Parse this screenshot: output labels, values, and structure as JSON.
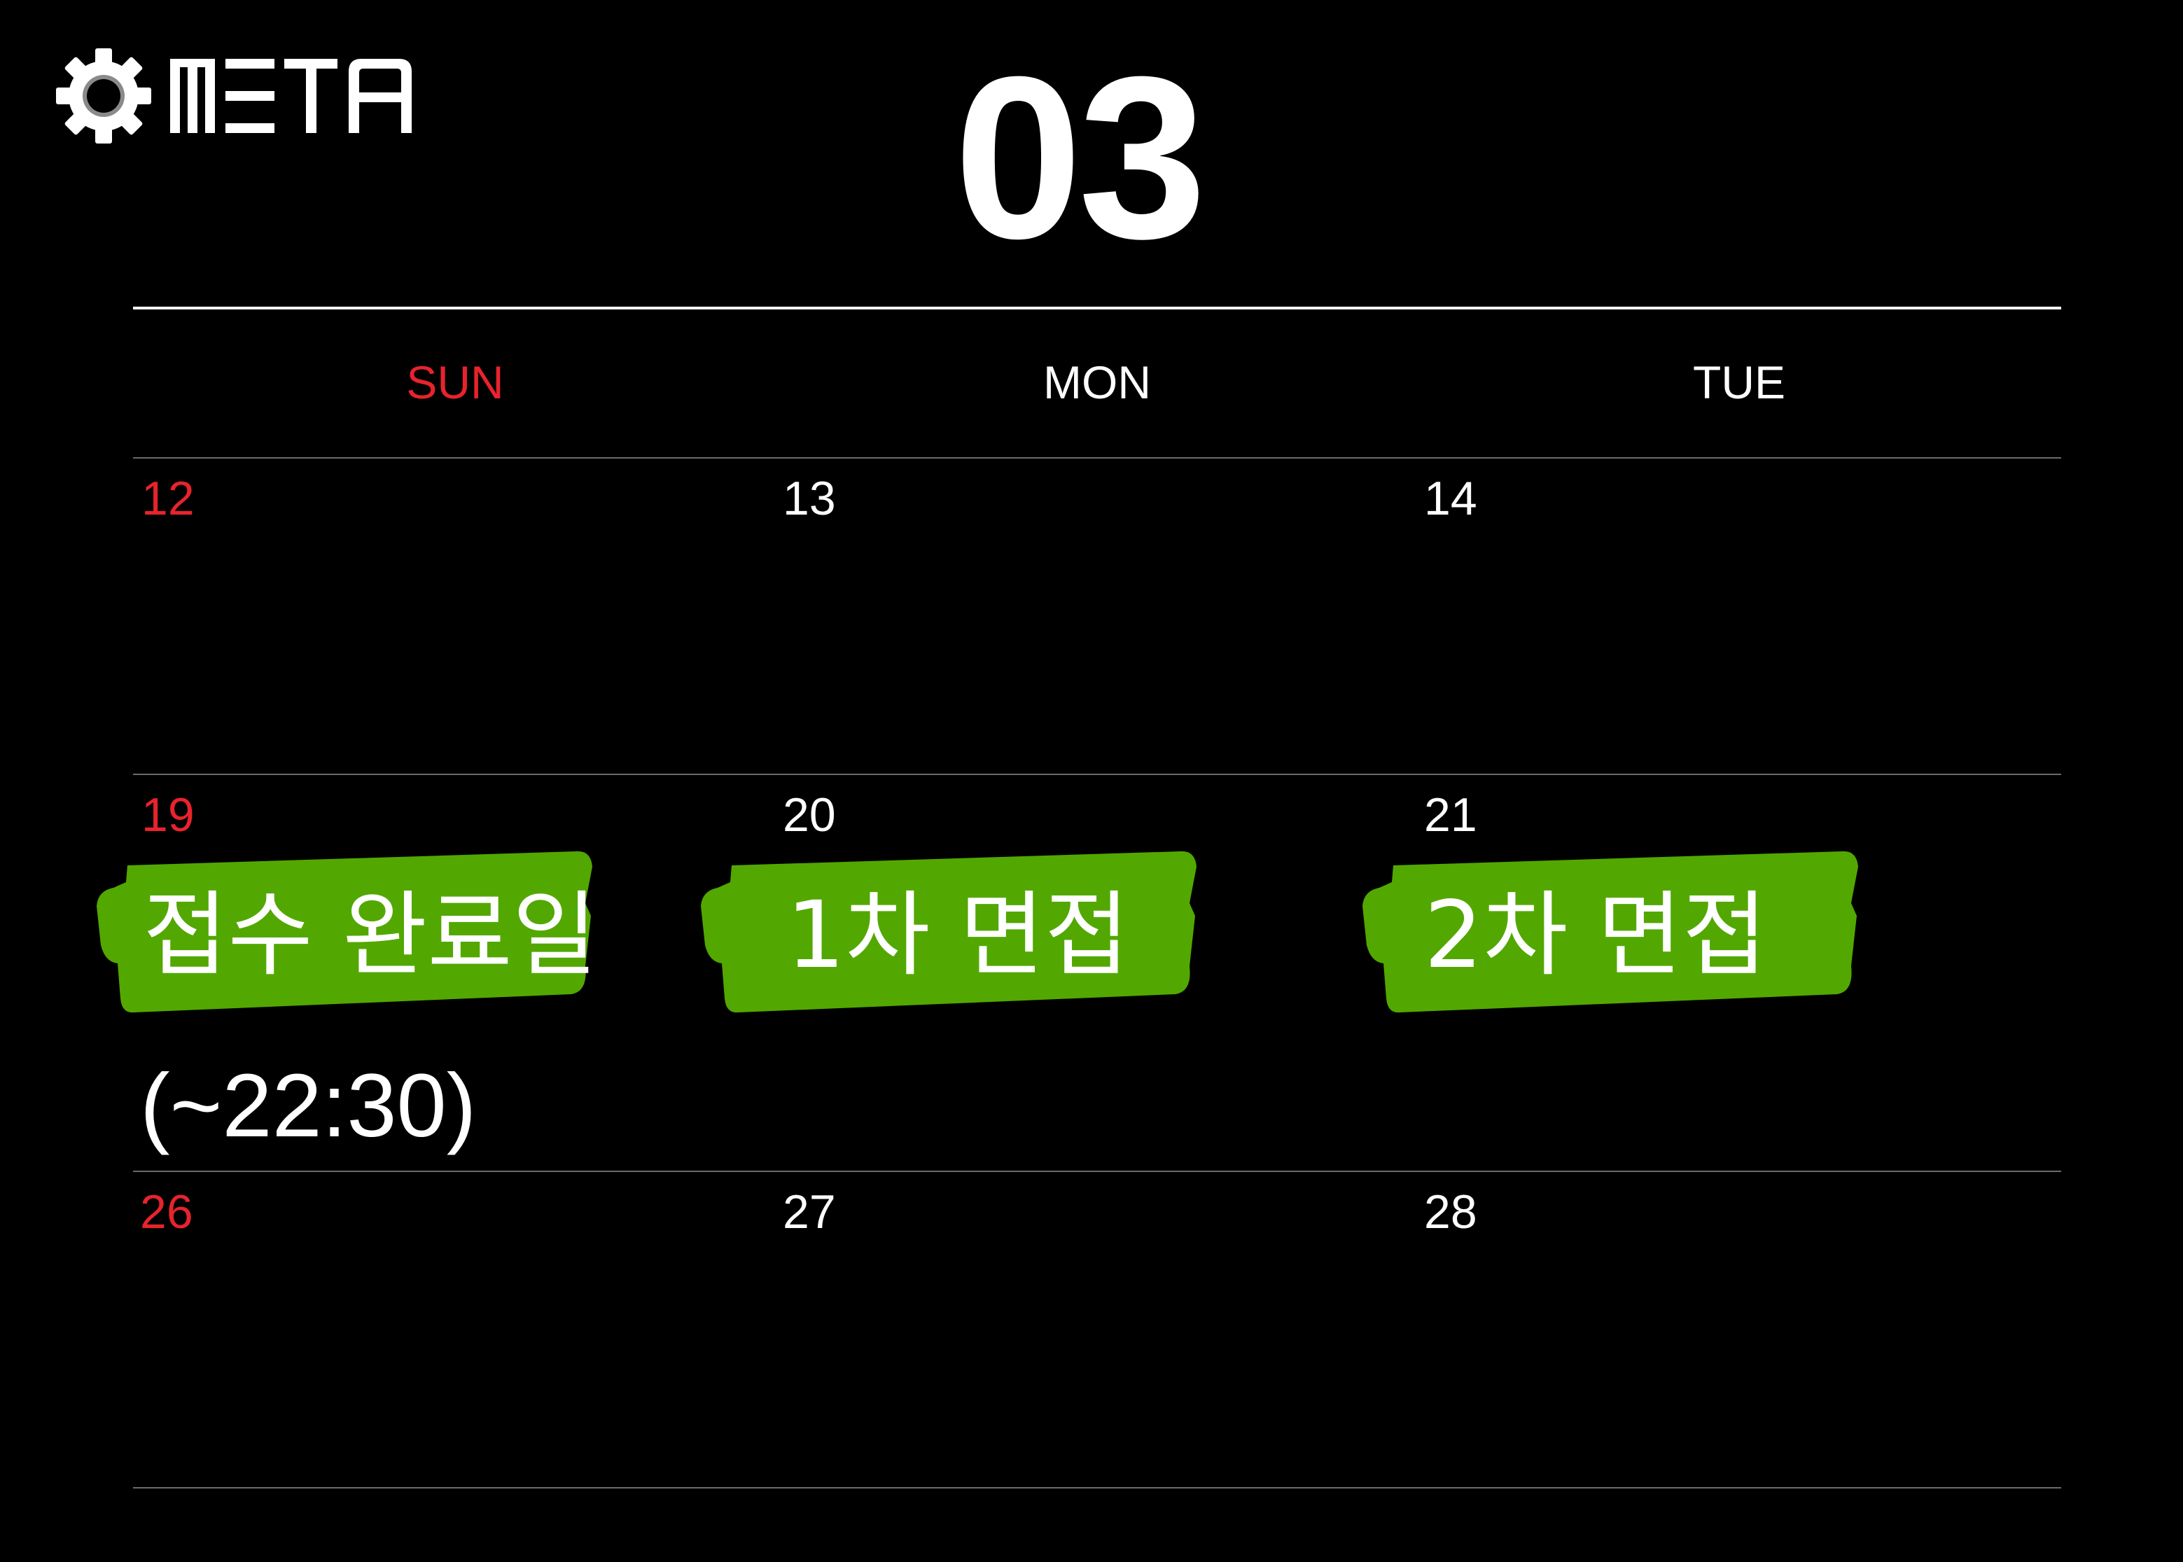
{
  "logo": {
    "text": "META",
    "icon": "gear-icon"
  },
  "month": "03",
  "colors": {
    "background": "#000000",
    "text": "#ffffff",
    "sunday": "#e8232c",
    "highlight": "#52a800",
    "divider": "#6b6b6b"
  },
  "weekdays": [
    "SUN",
    "MON",
    "TUE"
  ],
  "weeks": [
    {
      "days": [
        "12",
        "13",
        "14"
      ]
    },
    {
      "days": [
        "19",
        "20",
        "21"
      ]
    },
    {
      "days": [
        "26",
        "27",
        "28"
      ]
    }
  ],
  "events": [
    {
      "day": "19",
      "label": "접수 완료일",
      "note": "(~22:30)"
    },
    {
      "day": "20",
      "label": "1차 면접"
    },
    {
      "day": "21",
      "label": "2차 면접"
    }
  ]
}
